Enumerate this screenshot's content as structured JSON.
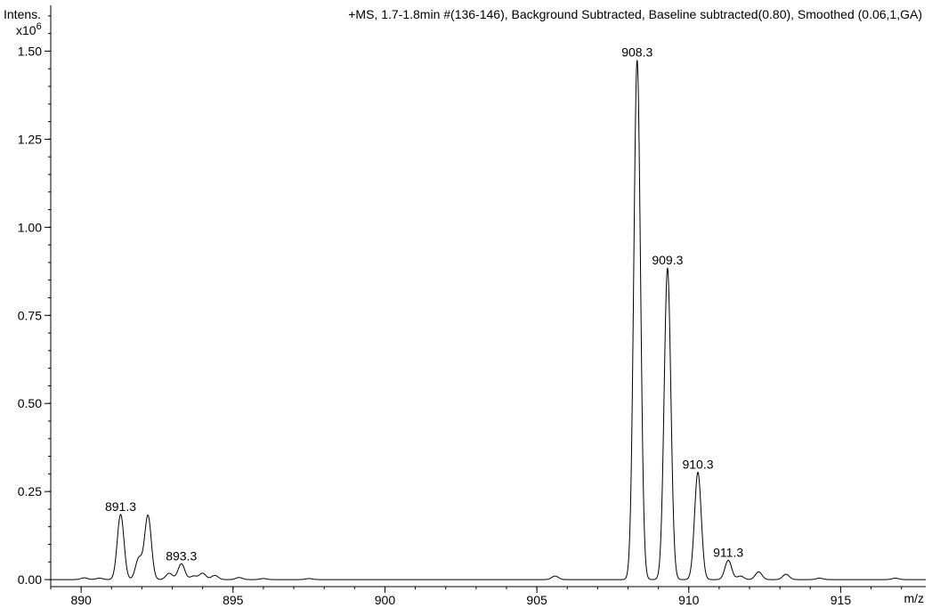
{
  "chart_data": {
    "type": "line",
    "title": "+MS, 1.7-1.8min #(136-146), Background Subtracted, Baseline subtracted(0.80), Smoothed (0.06,1,GA)",
    "ylabel": "Intens.",
    "yscale_label": "x10",
    "yscale_exp": "6",
    "xlabel": "m/z",
    "xlim": [
      889,
      917.8
    ],
    "ylim": [
      -0.02,
      1.63
    ],
    "x_ticks": [
      {
        "value": 890,
        "label": "890"
      },
      {
        "value": 895,
        "label": "895"
      },
      {
        "value": 900,
        "label": "900"
      },
      {
        "value": 905,
        "label": "905"
      },
      {
        "value": 910,
        "label": "910"
      },
      {
        "value": 915,
        "label": "915"
      }
    ],
    "x_minor_step": 1,
    "y_ticks": [
      {
        "value": 0.0,
        "label": "0.00"
      },
      {
        "value": 0.25,
        "label": "0.25"
      },
      {
        "value": 0.5,
        "label": "0.50"
      },
      {
        "value": 0.75,
        "label": "0.75"
      },
      {
        "value": 1.0,
        "label": "1.00"
      },
      {
        "value": 1.25,
        "label": "1.25"
      },
      {
        "value": 1.5,
        "label": "1.50"
      }
    ],
    "y_minor_step": 0.05,
    "grid": false,
    "peak_width": 0.11,
    "peaks": [
      {
        "mz": 890.1,
        "intensity": 0.005
      },
      {
        "mz": 890.6,
        "intensity": 0.004
      },
      {
        "mz": 891.3,
        "intensity": 0.185
      },
      {
        "mz": 891.9,
        "intensity": 0.06
      },
      {
        "mz": 892.2,
        "intensity": 0.182
      },
      {
        "mz": 892.9,
        "intensity": 0.018
      },
      {
        "mz": 893.3,
        "intensity": 0.045
      },
      {
        "mz": 893.7,
        "intensity": 0.01
      },
      {
        "mz": 894.0,
        "intensity": 0.018
      },
      {
        "mz": 894.4,
        "intensity": 0.012
      },
      {
        "mz": 895.2,
        "intensity": 0.006
      },
      {
        "mz": 896.0,
        "intensity": 0.003
      },
      {
        "mz": 897.5,
        "intensity": 0.003
      },
      {
        "mz": 905.6,
        "intensity": 0.01
      },
      {
        "mz": 908.3,
        "intensity": 1.475
      },
      {
        "mz": 909.3,
        "intensity": 0.885
      },
      {
        "mz": 910.3,
        "intensity": 0.305
      },
      {
        "mz": 911.3,
        "intensity": 0.055
      },
      {
        "mz": 911.7,
        "intensity": 0.01
      },
      {
        "mz": 912.3,
        "intensity": 0.022
      },
      {
        "mz": 913.2,
        "intensity": 0.015
      },
      {
        "mz": 914.3,
        "intensity": 0.004
      },
      {
        "mz": 916.8,
        "intensity": 0.004
      }
    ],
    "annotations": [
      {
        "label": "891.3",
        "mz": 891.3,
        "intensity": 0.185
      },
      {
        "label": "893.3",
        "mz": 893.3,
        "intensity": 0.045
      },
      {
        "label": "908.3",
        "mz": 908.3,
        "intensity": 1.475
      },
      {
        "label": "909.3",
        "mz": 909.3,
        "intensity": 0.885
      },
      {
        "label": "910.3",
        "mz": 910.3,
        "intensity": 0.305
      },
      {
        "label": "911.3",
        "mz": 911.3,
        "intensity": 0.055
      }
    ]
  }
}
